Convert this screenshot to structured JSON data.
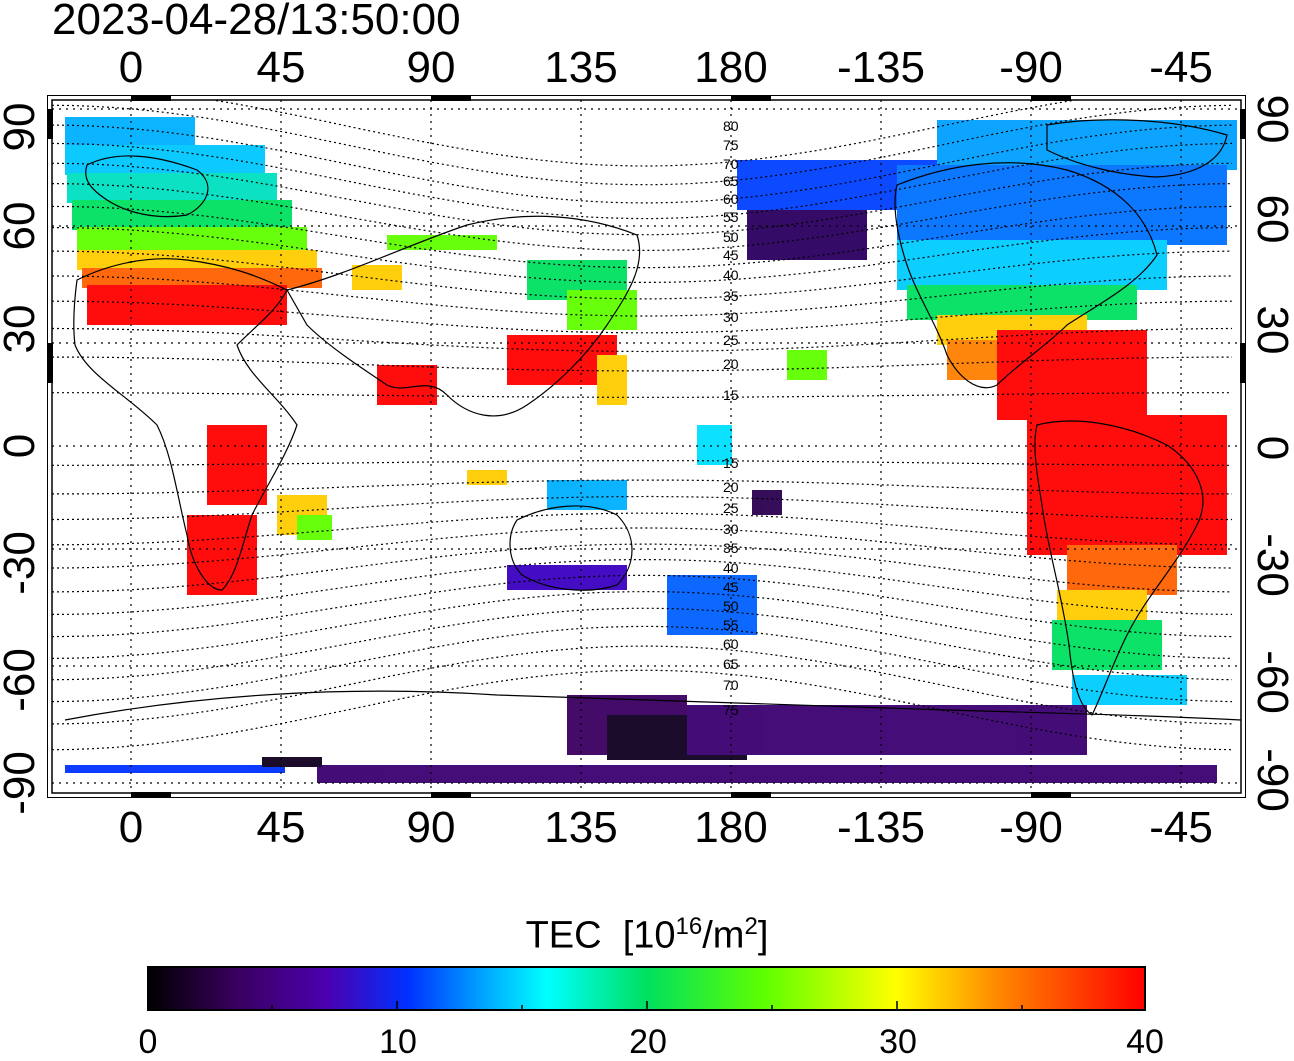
{
  "timestamp": "2023-04-28/13:50:00",
  "map": {
    "lon_labels": [
      "0",
      "45",
      "90",
      "135",
      "180",
      "-135",
      "-90",
      "-45"
    ],
    "lat_labels": [
      "90",
      "60",
      "30",
      "0",
      "-30",
      "-60",
      "-90"
    ],
    "mlat_labels": [
      "80",
      "75",
      "70",
      "65",
      "60",
      "55",
      "50",
      "45",
      "40",
      "35",
      "30",
      "25",
      "20",
      "15",
      "15",
      "20",
      "25",
      "30",
      "35",
      "40",
      "45",
      "50",
      "55",
      "60",
      "65",
      "70",
      "75"
    ]
  },
  "colorbar": {
    "title": "TEC",
    "unit_base": "[10",
    "unit_exp": "16",
    "unit_mid": "/m",
    "unit_exp2": "2",
    "unit_end": "]",
    "tick_labels": [
      "0",
      "10",
      "20",
      "30",
      "40"
    ],
    "range": [
      0,
      40
    ]
  },
  "colors": {
    "scale": [
      "#000000",
      "#3a0060",
      "#4b00b0",
      "#0030ff",
      "#00aaff",
      "#00ffff",
      "#00e060",
      "#60ff00",
      "#ffff00",
      "#ff8000",
      "#ff0000"
    ]
  }
}
